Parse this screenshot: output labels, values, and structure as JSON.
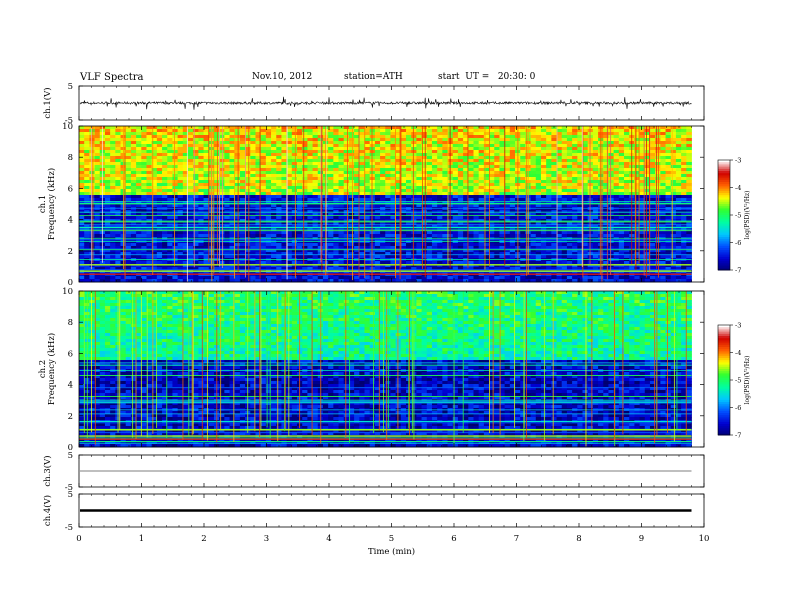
{
  "header": {
    "title": "VLF Spectra",
    "date": "Nov.10, 2012",
    "station": "station=ATH",
    "start": "start  UT =   20:30: 0"
  },
  "chart_data": [
    {
      "type": "line",
      "panel": "ch1-waveform",
      "ylabel": "ch.1(V)",
      "ylim": [
        -5,
        5
      ],
      "yticks": [
        "5",
        "-5"
      ],
      "signal": "noise with spikes",
      "baseline": 0.0,
      "noise_amplitude": 0.35,
      "spike_amplitude": 1.7
    },
    {
      "type": "heatmap",
      "panel": "ch1-spectrogram",
      "ylabel": "ch.1\nFrequency  (kHz)",
      "ylim": [
        0,
        10
      ],
      "yticks": [
        "0",
        "2",
        "4",
        "6",
        "8",
        "10"
      ],
      "colorbar": {
        "label": "log(PSD)(V²/Hz)",
        "ticks": [
          "-3",
          "-4",
          "-5",
          "-6",
          "-7"
        ],
        "range": [
          -7,
          -3
        ]
      },
      "band_boundary_khz": 5.6,
      "level_high_band": -4.5,
      "level_low_band": -6.5
    },
    {
      "type": "heatmap",
      "panel": "ch2-spectrogram",
      "ylabel": "ch.2\nFrequency  (kHz)",
      "ylim": [
        0,
        10
      ],
      "yticks": [
        "0",
        "2",
        "4",
        "6",
        "8",
        "10"
      ],
      "colorbar": {
        "label": "log(PSD)(V²/Hz)",
        "ticks": [
          "-3",
          "-4",
          "-5",
          "-6",
          "-7"
        ],
        "range": [
          -7,
          -3
        ]
      },
      "band_boundary_khz": 5.6,
      "level_high_band": -5.2,
      "level_low_band": -6.6
    },
    {
      "type": "line",
      "panel": "ch3-waveform",
      "ylabel": "ch.3(V)",
      "ylim": [
        -5,
        5
      ],
      "yticks": [
        "5",
        "-5"
      ],
      "signal": "flat",
      "baseline": 0.0
    },
    {
      "type": "line",
      "panel": "ch4-waveform",
      "ylabel": "ch.4(V)",
      "ylim": [
        -5,
        5
      ],
      "yticks": [
        "5",
        "-5"
      ],
      "signal": "flat thick",
      "baseline": 0.0
    }
  ],
  "xaxis": {
    "label": "Time  (min)",
    "range": [
      0,
      10
    ],
    "data_end_min": 9.8,
    "ticks": [
      "0",
      "1",
      "2",
      "3",
      "4",
      "5",
      "6",
      "7",
      "8",
      "9",
      "10"
    ]
  },
  "colors": {
    "colormap": [
      "#000070",
      "#0000d0",
      "#0050ff",
      "#00c8ff",
      "#00ffa0",
      "#30ff30",
      "#ffff00",
      "#ff6000",
      "#d00000",
      "#ffffff"
    ]
  }
}
